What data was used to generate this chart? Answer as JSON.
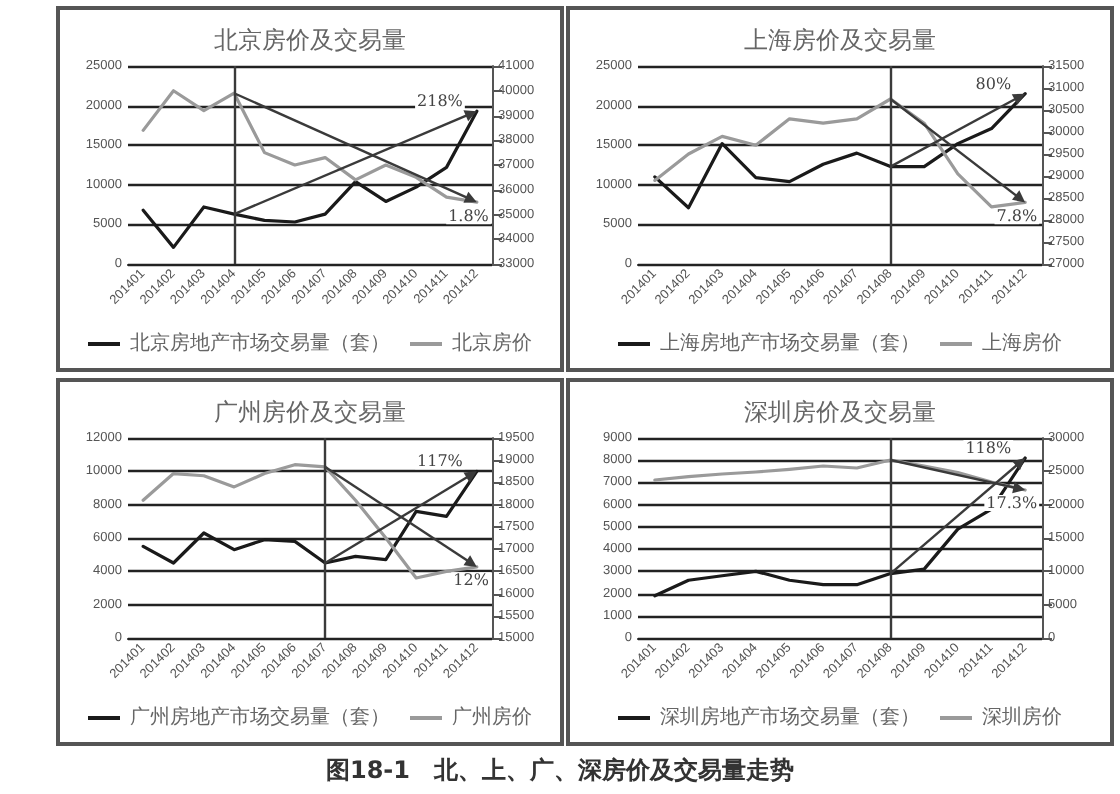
{
  "chart_data": [
    {
      "type": "line",
      "title": "北京房价及交易量",
      "categories": [
        "201401",
        "201402",
        "201403",
        "201404",
        "201405",
        "201406",
        "201407",
        "201408",
        "201409",
        "201410",
        "201411",
        "201412"
      ],
      "series": [
        {
          "name": "北京房地产市场交易量（套）",
          "color": "#1a1a1a",
          "values": [
            6800,
            2100,
            7200,
            6300,
            5500,
            5300,
            6300,
            10400,
            7900,
            9700,
            12200,
            19300
          ]
        },
        {
          "name": "北京房价",
          "color": "#9a9a9a",
          "axis": "y2",
          "values": [
            38400,
            40000,
            39200,
            39900,
            37500,
            37000,
            37300,
            36400,
            37000,
            36500,
            35700,
            35500
          ]
        }
      ],
      "ylim": [
        0,
        25000
      ],
      "yticks": [
        0,
        5000,
        10000,
        15000,
        20000,
        25000
      ],
      "y2lim": [
        33000,
        41000
      ],
      "y2ticks": [
        33000,
        34000,
        35000,
        36000,
        37000,
        38000,
        39000,
        40000,
        41000
      ],
      "ref_lines": [
        {
          "axis": "x",
          "value": "201404",
          "color": "#3a3a3a"
        }
      ],
      "annotations": [
        {
          "text": "218%",
          "x": "201412",
          "y": 19300
        },
        {
          "text": "1.8%",
          "x": "201412",
          "y": 7800
        }
      ],
      "grid": "y",
      "legend": "bottom",
      "marker": "none",
      "line_style": "solid"
    },
    {
      "type": "line",
      "title": "上海房价及交易量",
      "categories": [
        "201401",
        "201402",
        "201403",
        "201404",
        "201405",
        "201406",
        "201407",
        "201408",
        "201409",
        "201410",
        "201411",
        "201412"
      ],
      "series": [
        {
          "name": "上海房地产市场交易量（套）",
          "color": "#1a1a1a",
          "values": [
            11000,
            7100,
            15200,
            10900,
            10400,
            12600,
            14000,
            12300,
            12300,
            15200,
            17100,
            21500
          ]
        },
        {
          "name": "上海房价",
          "color": "#9a9a9a",
          "axis": "y2",
          "values": [
            28900,
            29500,
            29900,
            29700,
            30300,
            30200,
            30300,
            30750,
            30200,
            29050,
            28300,
            28400
          ]
        }
      ],
      "ylim": [
        0,
        25000
      ],
      "yticks": [
        0,
        5000,
        10000,
        15000,
        20000,
        25000
      ],
      "y2lim": [
        27000,
        31500
      ],
      "y2ticks": [
        27000,
        27500,
        28000,
        28500,
        29000,
        29500,
        30000,
        30500,
        31000,
        31500
      ],
      "ref_lines": [
        {
          "axis": "x",
          "value": "201408",
          "color": "#3a3a3a"
        }
      ],
      "annotations": [
        {
          "text": "80%",
          "x": "201412",
          "y": 21500
        },
        {
          "text": "7.8%",
          "x": "201412",
          "y": 7800
        }
      ],
      "grid": "y",
      "legend": "bottom",
      "marker": "none",
      "line_style": "solid"
    },
    {
      "type": "line",
      "title": "广州房价及交易量",
      "categories": [
        "201401",
        "201402",
        "201403",
        "201404",
        "201405",
        "201406",
        "201407",
        "201408",
        "201409",
        "201410",
        "201411",
        "201412"
      ],
      "series": [
        {
          "name": "广州房地产市场交易量（套）",
          "color": "#1a1a1a",
          "values": [
            5500,
            4500,
            6300,
            5300,
            5900,
            5800,
            4500,
            4900,
            4700,
            7600,
            7300,
            10000
          ]
        },
        {
          "name": "广州房价",
          "color": "#9a9a9a",
          "axis": "y2",
          "values": [
            18100,
            18700,
            18650,
            18400,
            18700,
            18900,
            18850,
            18100,
            17250,
            16350,
            16500,
            16600
          ]
        }
      ],
      "ylim": [
        0,
        12000
      ],
      "yticks": [
        0,
        2000,
        4000,
        6000,
        8000,
        10000,
        12000
      ],
      "y2lim": [
        15000,
        19500
      ],
      "y2ticks": [
        15000,
        15500,
        16000,
        16500,
        17000,
        17500,
        18000,
        18500,
        19000,
        19500
      ],
      "ref_lines": [
        {
          "axis": "x",
          "value": "201407",
          "color": "#3a3a3a"
        }
      ],
      "annotations": [
        {
          "text": "117%",
          "x": "201412",
          "y": 10000
        },
        {
          "text": "12%",
          "x": "201412",
          "y": 4300
        }
      ],
      "grid": "y",
      "legend": "bottom",
      "marker": "none",
      "line_style": "solid"
    },
    {
      "type": "line",
      "title": "深圳房价及交易量",
      "categories": [
        "201401",
        "201402",
        "201403",
        "201404",
        "201405",
        "201406",
        "201407",
        "201408",
        "201409",
        "201410",
        "201411",
        "201412"
      ],
      "series": [
        {
          "name": "深圳房地产市场交易量（套）",
          "color": "#1a1a1a",
          "values": [
            1900,
            2600,
            2800,
            3000,
            2600,
            2400,
            2400,
            2900,
            3100,
            4900,
            5800,
            8100
          ]
        },
        {
          "name": "深圳房价",
          "color": "#9a9a9a",
          "axis": "y2",
          "values": [
            23700,
            24200,
            24600,
            24900,
            25300,
            25800,
            25500,
            26700,
            25800,
            24800,
            23400,
            22200
          ]
        }
      ],
      "ylim": [
        0,
        9000
      ],
      "yticks": [
        0,
        1000,
        2000,
        3000,
        4000,
        5000,
        6000,
        7000,
        8000,
        9000
      ],
      "y2lim": [
        0,
        30000
      ],
      "y2ticks": [
        0,
        5000,
        10000,
        15000,
        20000,
        25000,
        30000
      ],
      "ref_lines": [
        {
          "axis": "x",
          "value": "201408",
          "color": "#3a3a3a"
        }
      ],
      "annotations": [
        {
          "text": "118%",
          "x": "201412",
          "y": 8100
        },
        {
          "text": "17.3%",
          "x": "201412",
          "y": 6700
        },
        "图18-1　北、上、广、深房价及交易量走势"
      ],
      "grid": "y",
      "legend": "bottom",
      "marker": "none",
      "line_style": "solid"
    }
  ]
}
